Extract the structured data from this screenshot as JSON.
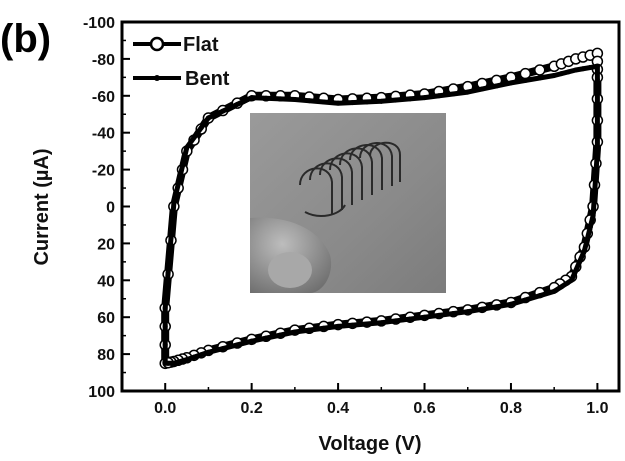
{
  "chart_data": {
    "type": "line",
    "panel_label": "(b)",
    "title": "",
    "xlabel": "Voltage (V)",
    "ylabel": "Current (µA)",
    "xlim": [
      -0.1,
      1.05
    ],
    "ylim": [
      100,
      -100
    ],
    "y_inverted": true,
    "grid": false,
    "legend_position": "top-left",
    "x_ticks": [
      0.0,
      0.2,
      0.4,
      0.6,
      0.8,
      1.0
    ],
    "x_tick_labels": [
      "0.0",
      "0.2",
      "0.4",
      "0.6",
      "0.8",
      "1.0"
    ],
    "y_ticks": [
      -100,
      -80,
      -60,
      -40,
      -20,
      0,
      20,
      40,
      60,
      80,
      100
    ],
    "y_tick_labels": [
      "-100",
      "-80",
      "-60",
      "-40",
      "-20",
      "0",
      "20",
      "40",
      "60",
      "80",
      "100"
    ],
    "series": [
      {
        "name": "Flat",
        "marker": "open-circle",
        "color": "#000000",
        "x": [
          0.0,
          0.0,
          0.02,
          0.05,
          0.1,
          0.2,
          0.3,
          0.4,
          0.5,
          0.6,
          0.7,
          0.8,
          0.9,
          0.95,
          1.0,
          1.0,
          1.0,
          0.99,
          0.97,
          0.94,
          0.9,
          0.8,
          0.7,
          0.6,
          0.5,
          0.4,
          0.3,
          0.2,
          0.1,
          0.05,
          0.02,
          0.0
        ],
        "y": [
          85,
          55,
          0,
          -30,
          -48,
          -60,
          -60,
          -58,
          -59,
          -61,
          -65,
          -70,
          -76,
          -80,
          -83,
          -70,
          -35,
          0,
          22,
          38,
          44,
          52,
          56,
          59,
          62,
          64,
          67,
          72,
          78,
          82,
          84,
          85
        ]
      },
      {
        "name": "Bent",
        "marker": "small-filled-dot",
        "color": "#000000",
        "x": [
          0.0,
          0.0,
          0.02,
          0.05,
          0.1,
          0.2,
          0.3,
          0.4,
          0.5,
          0.6,
          0.7,
          0.8,
          0.9,
          0.95,
          1.0,
          1.0,
          1.0,
          0.99,
          0.97,
          0.94,
          0.9,
          0.8,
          0.7,
          0.6,
          0.5,
          0.4,
          0.3,
          0.2,
          0.1,
          0.05,
          0.02,
          0.0
        ],
        "y": [
          85,
          55,
          -2,
          -32,
          -48,
          -59,
          -58,
          -56,
          -57,
          -59,
          -62,
          -67,
          -71,
          -74,
          -76,
          -65,
          -30,
          5,
          24,
          40,
          46,
          53,
          57,
          60,
          63,
          65,
          68,
          73,
          79,
          83,
          85,
          85
        ]
      }
    ],
    "inset": {
      "type": "photograph",
      "subject": "flexible coiled device held between fingers"
    }
  }
}
